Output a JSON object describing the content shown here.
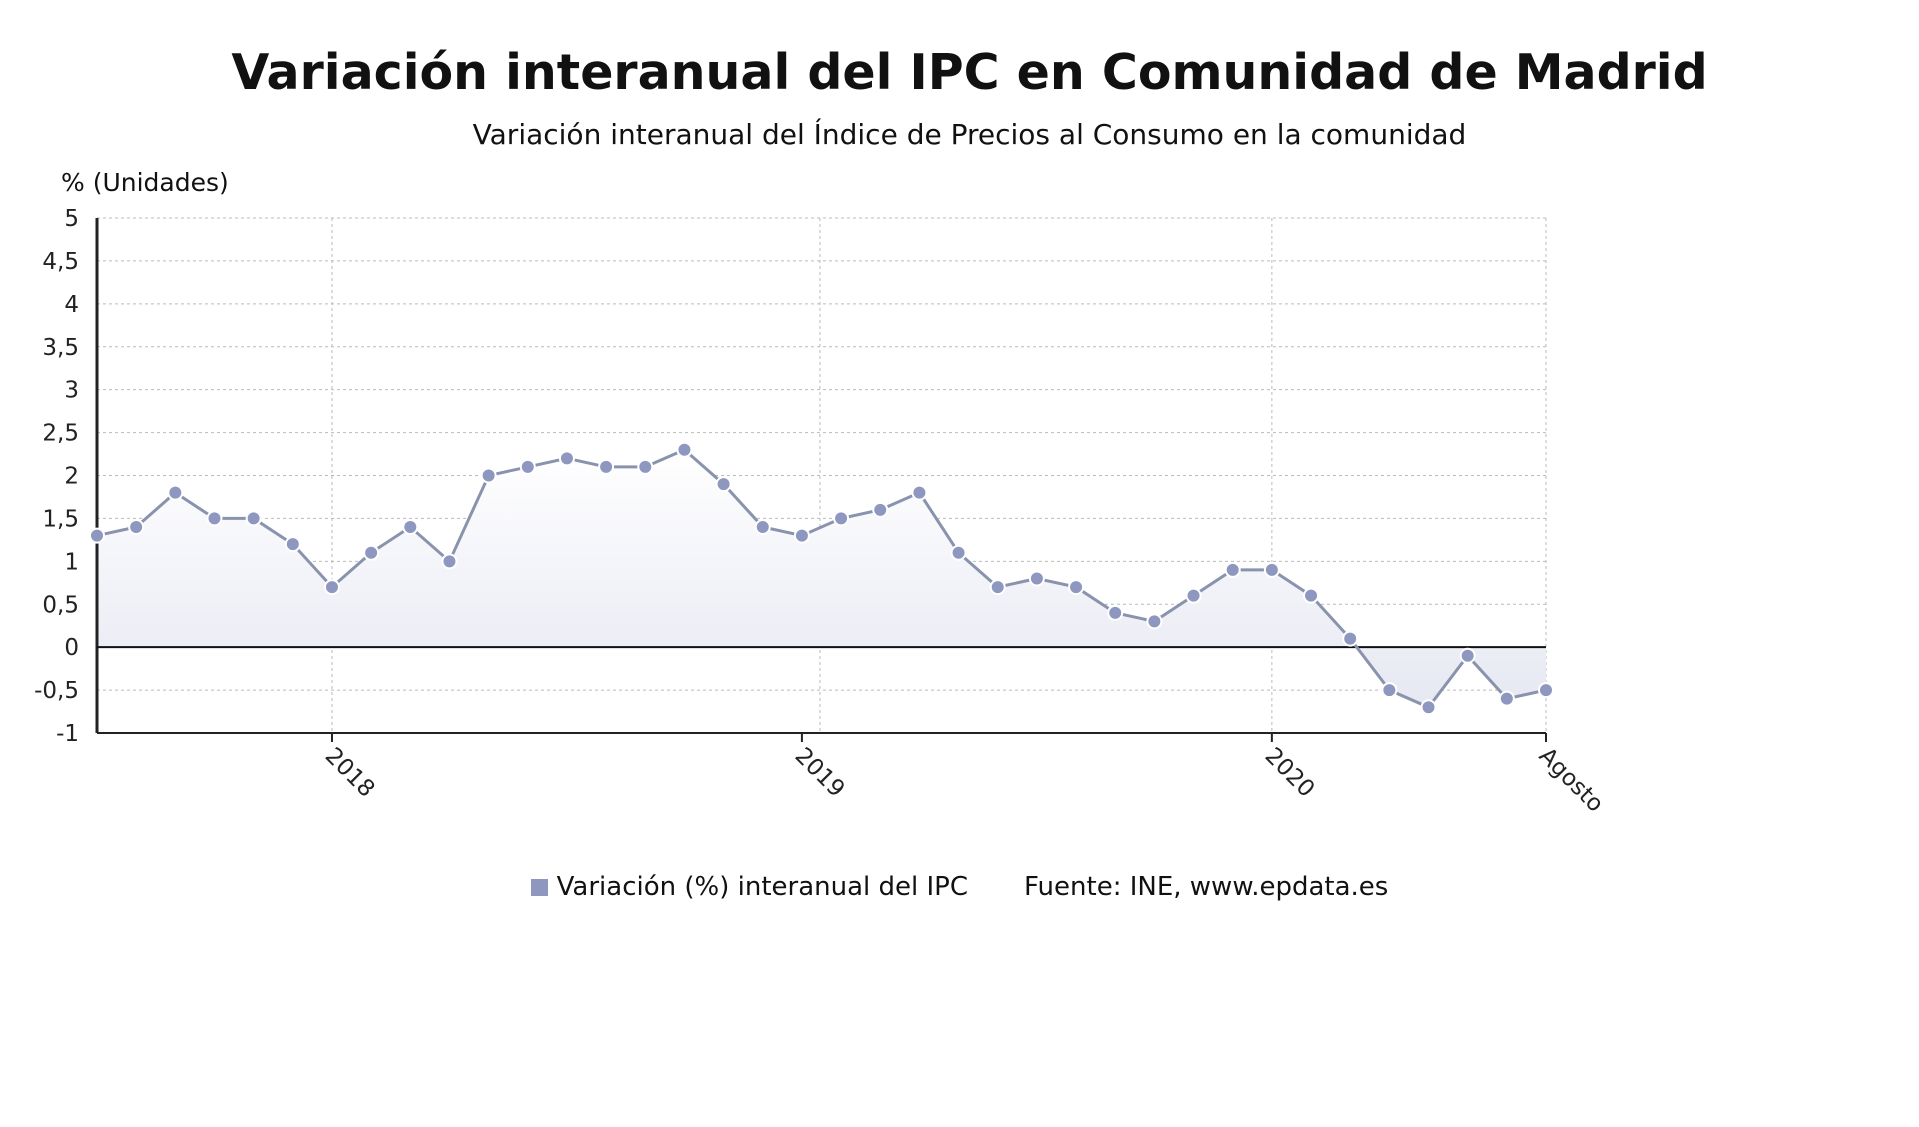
{
  "chart_data": {
    "type": "area",
    "title": "Variación interanual del IPC en Comunidad de Madrid",
    "subtitle": "Variación interanual del Índice de Precios al Consumo en la comunidad",
    "ylabel": "% (Unidades)",
    "xlabel": "",
    "ylim": [
      -1,
      5
    ],
    "y_ticks": [
      "5",
      "4,5",
      "4",
      "3,5",
      "3",
      "2,5",
      "2",
      "1,5",
      "1",
      "0,5",
      "0",
      "-0,5",
      "-1"
    ],
    "y_tick_values": [
      5,
      4.5,
      4,
      3.5,
      3,
      2.5,
      2,
      1.5,
      1,
      0.5,
      0,
      -0.5,
      -1
    ],
    "x_ticks": [
      {
        "label": "2018",
        "index": 6
      },
      {
        "label": "2019",
        "index": 18
      },
      {
        "label": "2020",
        "index": 30
      },
      {
        "label": "Agosto",
        "index": 37
      }
    ],
    "x_start": "2017-07",
    "x_end": "2020-08",
    "grid": true,
    "legend_position": "bottom",
    "series": [
      {
        "name": "Variación (%) interanual del IPC",
        "color": "#8e97c0",
        "values": [
          1.3,
          1.4,
          1.8,
          1.5,
          1.5,
          1.2,
          0.7,
          1.1,
          1.4,
          1.0,
          2.0,
          2.1,
          2.2,
          2.1,
          2.1,
          2.3,
          1.9,
          1.4,
          1.3,
          1.5,
          1.6,
          1.8,
          1.1,
          0.7,
          0.8,
          0.7,
          0.4,
          0.3,
          0.6,
          0.9,
          0.9,
          0.6,
          0.1,
          -0.5,
          -0.7,
          -0.1,
          -0.6,
          -0.5
        ]
      }
    ],
    "source": "Fuente: INE, www.epdata.es"
  }
}
